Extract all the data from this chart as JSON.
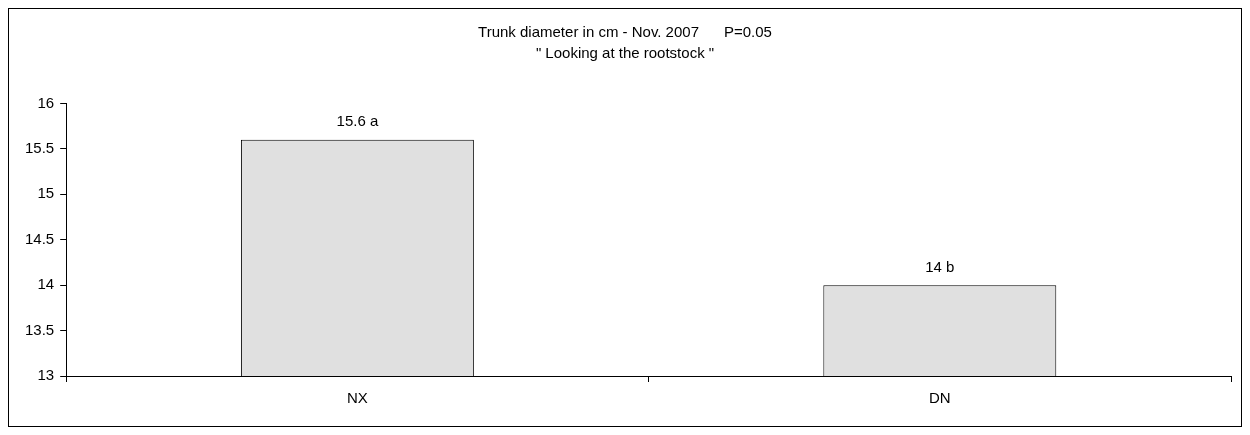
{
  "chart_data": {
    "type": "bar",
    "title": "Trunk diameter in cm - Nov. 2007      P=0.05",
    "subtitle": "\" Looking at the rootstock \"",
    "categories": [
      "NX",
      "DN"
    ],
    "values": [
      15.6,
      14
    ],
    "color": "#e0e0e0",
    "value_labels": [
      "15.6 a",
      "14 b"
    ],
    "ylim": [
      13,
      16
    ],
    "yticks": [
      13,
      13.5,
      14,
      14.5,
      15,
      15.5,
      16
    ],
    "grid": false,
    "legend": false
  }
}
